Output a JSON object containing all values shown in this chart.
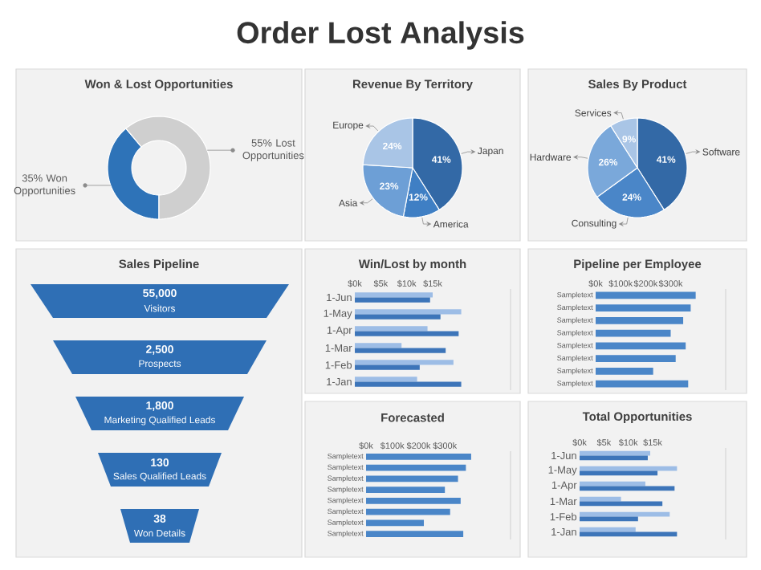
{
  "chart_data": [
    {
      "type": "other",
      "title": "Order Lost Analysis"
    },
    {
      "type": "donut",
      "title": "Won & Lost Opportunities",
      "categories": [
        "Won Opportunities",
        "Lost Opportunities"
      ],
      "values": [
        35,
        55
      ],
      "value_labels": [
        "35%",
        "55%"
      ],
      "colors": [
        "#2e73b8",
        "#cfcfcf"
      ]
    },
    {
      "type": "pie",
      "title": "Revenue By Territory",
      "categories": [
        "Japan",
        "America",
        "Asia",
        "Europe"
      ],
      "values": [
        41,
        12,
        23,
        24
      ],
      "value_labels": [
        "41%",
        "12%",
        "23%",
        "24%"
      ],
      "colors": [
        "#3369a6",
        "#3f7fc4",
        "#6d9fd6",
        "#a9c5e6"
      ]
    },
    {
      "type": "pie",
      "title": "Sales By Product",
      "categories": [
        "Software",
        "Consulting",
        "Hardware",
        "Services"
      ],
      "values": [
        41,
        24,
        26,
        9
      ],
      "value_labels": [
        "41%",
        "24%",
        "26%",
        "9%"
      ],
      "colors": [
        "#3369a6",
        "#4a86c8",
        "#7aa8da",
        "#a9c5e6"
      ]
    },
    {
      "type": "other",
      "title": "Sales Pipeline",
      "categories": [
        "Visitors",
        "Prospects",
        "Marketing Qualified Leads",
        "Sales Qualified Leads",
        "Won Details"
      ],
      "values": [
        55000,
        2500,
        1800,
        130,
        38
      ],
      "value_labels": [
        "55,000",
        "2,500",
        "1,800",
        "130",
        "38"
      ],
      "color": "#2f6fb5"
    },
    {
      "type": "bar",
      "orientation": "horizontal",
      "title": "Win/Lost by month",
      "categories": [
        "1-Jun",
        "1-May",
        "1-Apr",
        "1-Mar",
        "1-Feb",
        "1-Jan"
      ],
      "series": [
        {
          "color": "#9dbde6",
          "values": [
            15000,
            20500,
            14000,
            9000,
            19000,
            12000
          ]
        },
        {
          "color": "#3d75b9",
          "values": [
            14500,
            16500,
            20000,
            17500,
            12500,
            20500
          ]
        }
      ],
      "xlim": [
        0,
        30000
      ],
      "xticks": [
        {
          "value": 0,
          "label": "$0k"
        },
        {
          "value": 5000,
          "label": "$5k"
        },
        {
          "value": 10000,
          "label": "$10k"
        },
        {
          "value": 15000,
          "label": "$15k"
        }
      ]
    },
    {
      "type": "bar",
      "orientation": "horizontal",
      "title": "Pipeline  per Employee",
      "categories": [
        "Sampletext",
        "Sampletext",
        "Sampletext",
        "Sampletext",
        "Sampletext",
        "Sampletext",
        "Sampletext",
        "Sampletext"
      ],
      "series": [
        {
          "color": "#4a86c8",
          "values": [
            400000,
            380000,
            350000,
            300000,
            360000,
            320000,
            230000,
            370000
          ]
        }
      ],
      "xlim": [
        0,
        520000
      ],
      "xticks": [
        {
          "value": 0,
          "label": "$0k"
        },
        {
          "value": 100000,
          "label": "$100k"
        },
        {
          "value": 200000,
          "label": "$200k"
        },
        {
          "value": 300000,
          "label": "$300k"
        }
      ]
    },
    {
      "type": "bar",
      "orientation": "horizontal",
      "title": "Forecasted",
      "categories": [
        "Sampletext",
        "Sampletext",
        "Sampletext",
        "Sampletext",
        "Sampletext",
        "Sampletext",
        "Sampletext",
        "Sampletext"
      ],
      "series": [
        {
          "color": "#4a86c8",
          "values": [
            400000,
            380000,
            350000,
            300000,
            360000,
            320000,
            220000,
            370000
          ]
        }
      ],
      "xlim": [
        0,
        550000
      ],
      "xticks": [
        {
          "value": 0,
          "label": "$0k"
        },
        {
          "value": 100000,
          "label": "$100k"
        },
        {
          "value": 200000,
          "label": "$200k"
        },
        {
          "value": 300000,
          "label": "$300k"
        }
      ]
    },
    {
      "type": "bar",
      "orientation": "horizontal",
      "title": "Total Opportunities",
      "categories": [
        "1-Jun",
        "1-May",
        "1-Apr",
        "1-Mar",
        "1-Feb",
        "1-Jan"
      ],
      "series": [
        {
          "color": "#9dbde6",
          "values": [
            14500,
            20000,
            13500,
            8500,
            18500,
            11500
          ]
        },
        {
          "color": "#3d75b9",
          "values": [
            14000,
            16000,
            19500,
            17000,
            12000,
            20000
          ]
        }
      ],
      "xlim": [
        0,
        30000
      ],
      "xticks": [
        {
          "value": 0,
          "label": "$0k"
        },
        {
          "value": 5000,
          "label": "$5k"
        },
        {
          "value": 10000,
          "label": "$10k"
        },
        {
          "value": 15000,
          "label": "$15k"
        }
      ]
    }
  ]
}
